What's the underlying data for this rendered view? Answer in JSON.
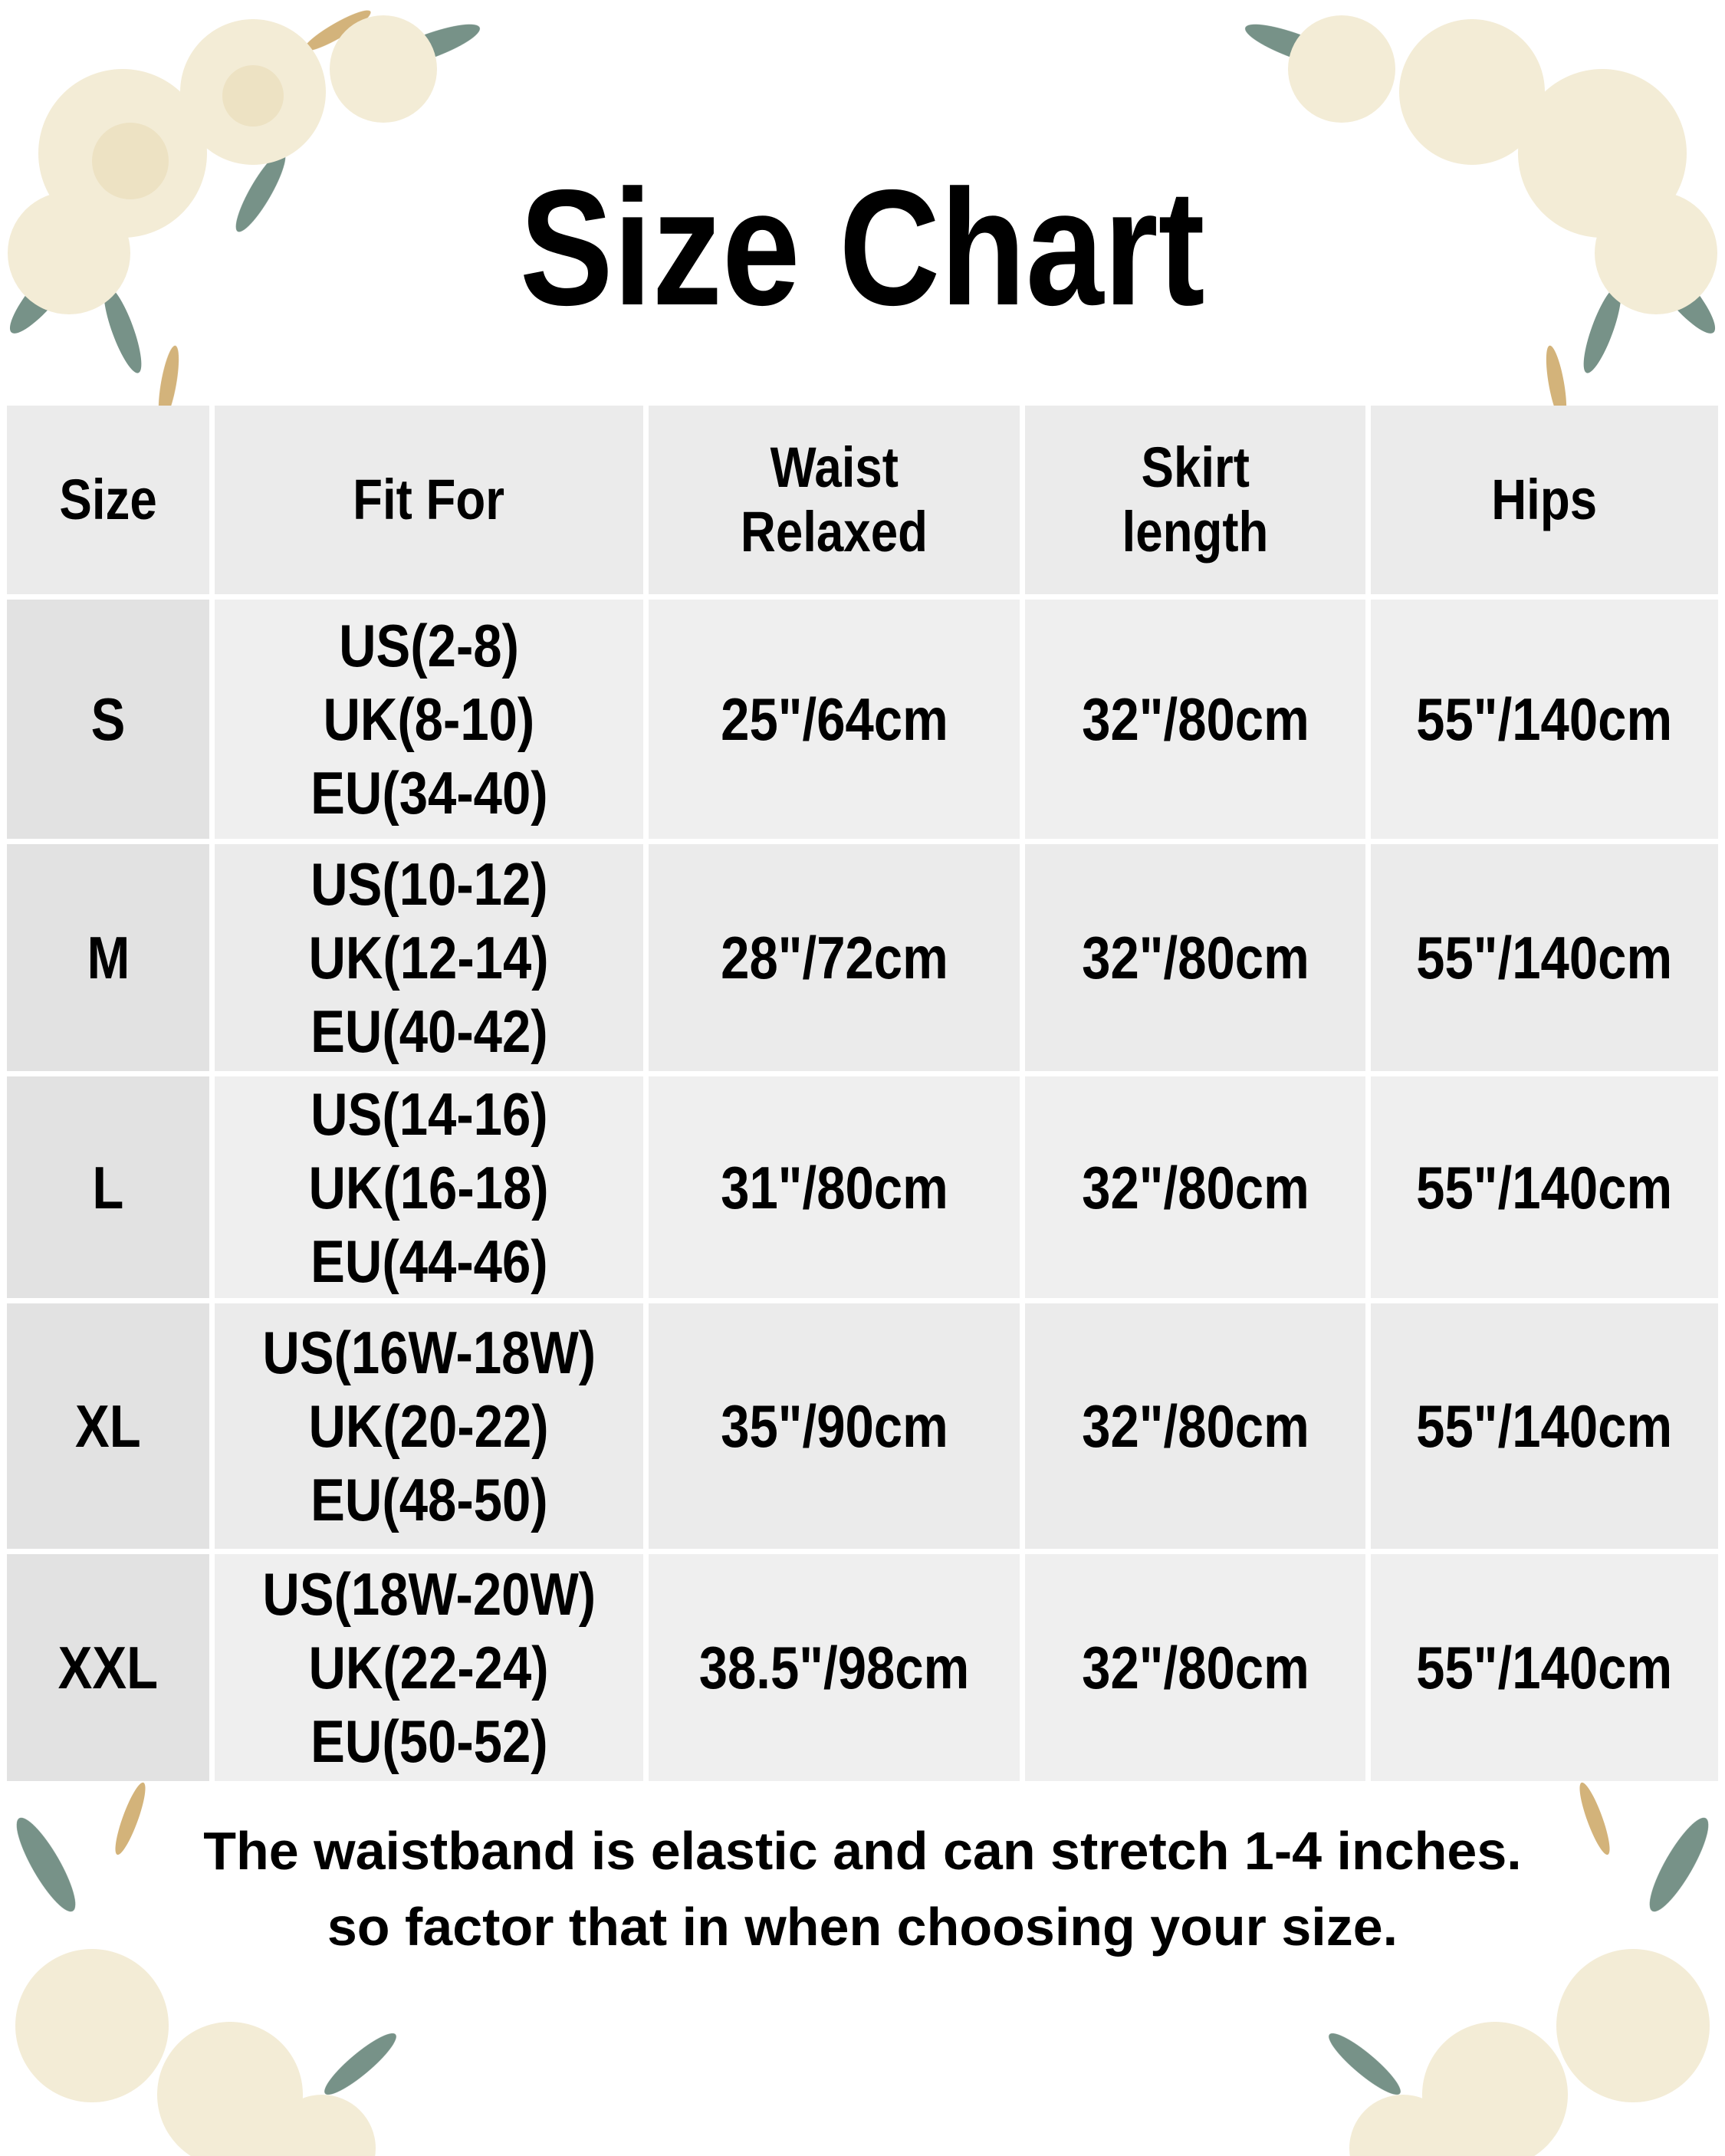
{
  "title": "Size Chart",
  "table": {
    "headers": [
      "Size",
      "Fit For",
      "Waist Relaxed",
      "Skirt length",
      "Hips"
    ],
    "header_lines": [
      [
        "Size"
      ],
      [
        "Fit For"
      ],
      [
        "Waist",
        "Relaxed"
      ],
      [
        "Skirt",
        "length"
      ],
      [
        "Hips"
      ]
    ],
    "rows": [
      {
        "size": "S",
        "fit": [
          "US(2-8)",
          "UK(8-10)",
          "EU(34-40)"
        ],
        "waist": "25\"/64cm",
        "skirt": "32\"/80cm",
        "hips": "55\"/140cm"
      },
      {
        "size": "M",
        "fit": [
          "US(10-12)",
          "UK(12-14)",
          "EU(40-42)"
        ],
        "waist": "28\"/72cm",
        "skirt": "32\"/80cm",
        "hips": "55\"/140cm"
      },
      {
        "size": "L",
        "fit": [
          "US(14-16)",
          "UK(16-18)",
          "EU(44-46)"
        ],
        "waist": "31\"/80cm",
        "skirt": "32\"/80cm",
        "hips": "55\"/140cm"
      },
      {
        "size": "XL",
        "fit": [
          "US(16W-18W)",
          "UK(20-22)",
          "EU(48-50)"
        ],
        "waist": "35\"/90cm",
        "skirt": "32\"/80cm",
        "hips": "55\"/140cm"
      },
      {
        "size": "XXL",
        "fit": [
          "US(18W-20W)",
          "UK(22-24)",
          "EU(50-52)"
        ],
        "waist": "38.5\"/98cm",
        "skirt": "32\"/80cm",
        "hips": "55\"/140cm"
      }
    ]
  },
  "note": {
    "line1": "The waistband is elastic and can stretch 1-4 inches.",
    "line2": "so factor that in when choosing your size."
  },
  "colors": {
    "header_bg": "#ebebeb",
    "size_col_bg": "#e2e2e2",
    "cell_bg": "#efefef",
    "rose": "#f3ecd6",
    "leaf": "#5f7f73",
    "gold": "#c9a15a"
  }
}
